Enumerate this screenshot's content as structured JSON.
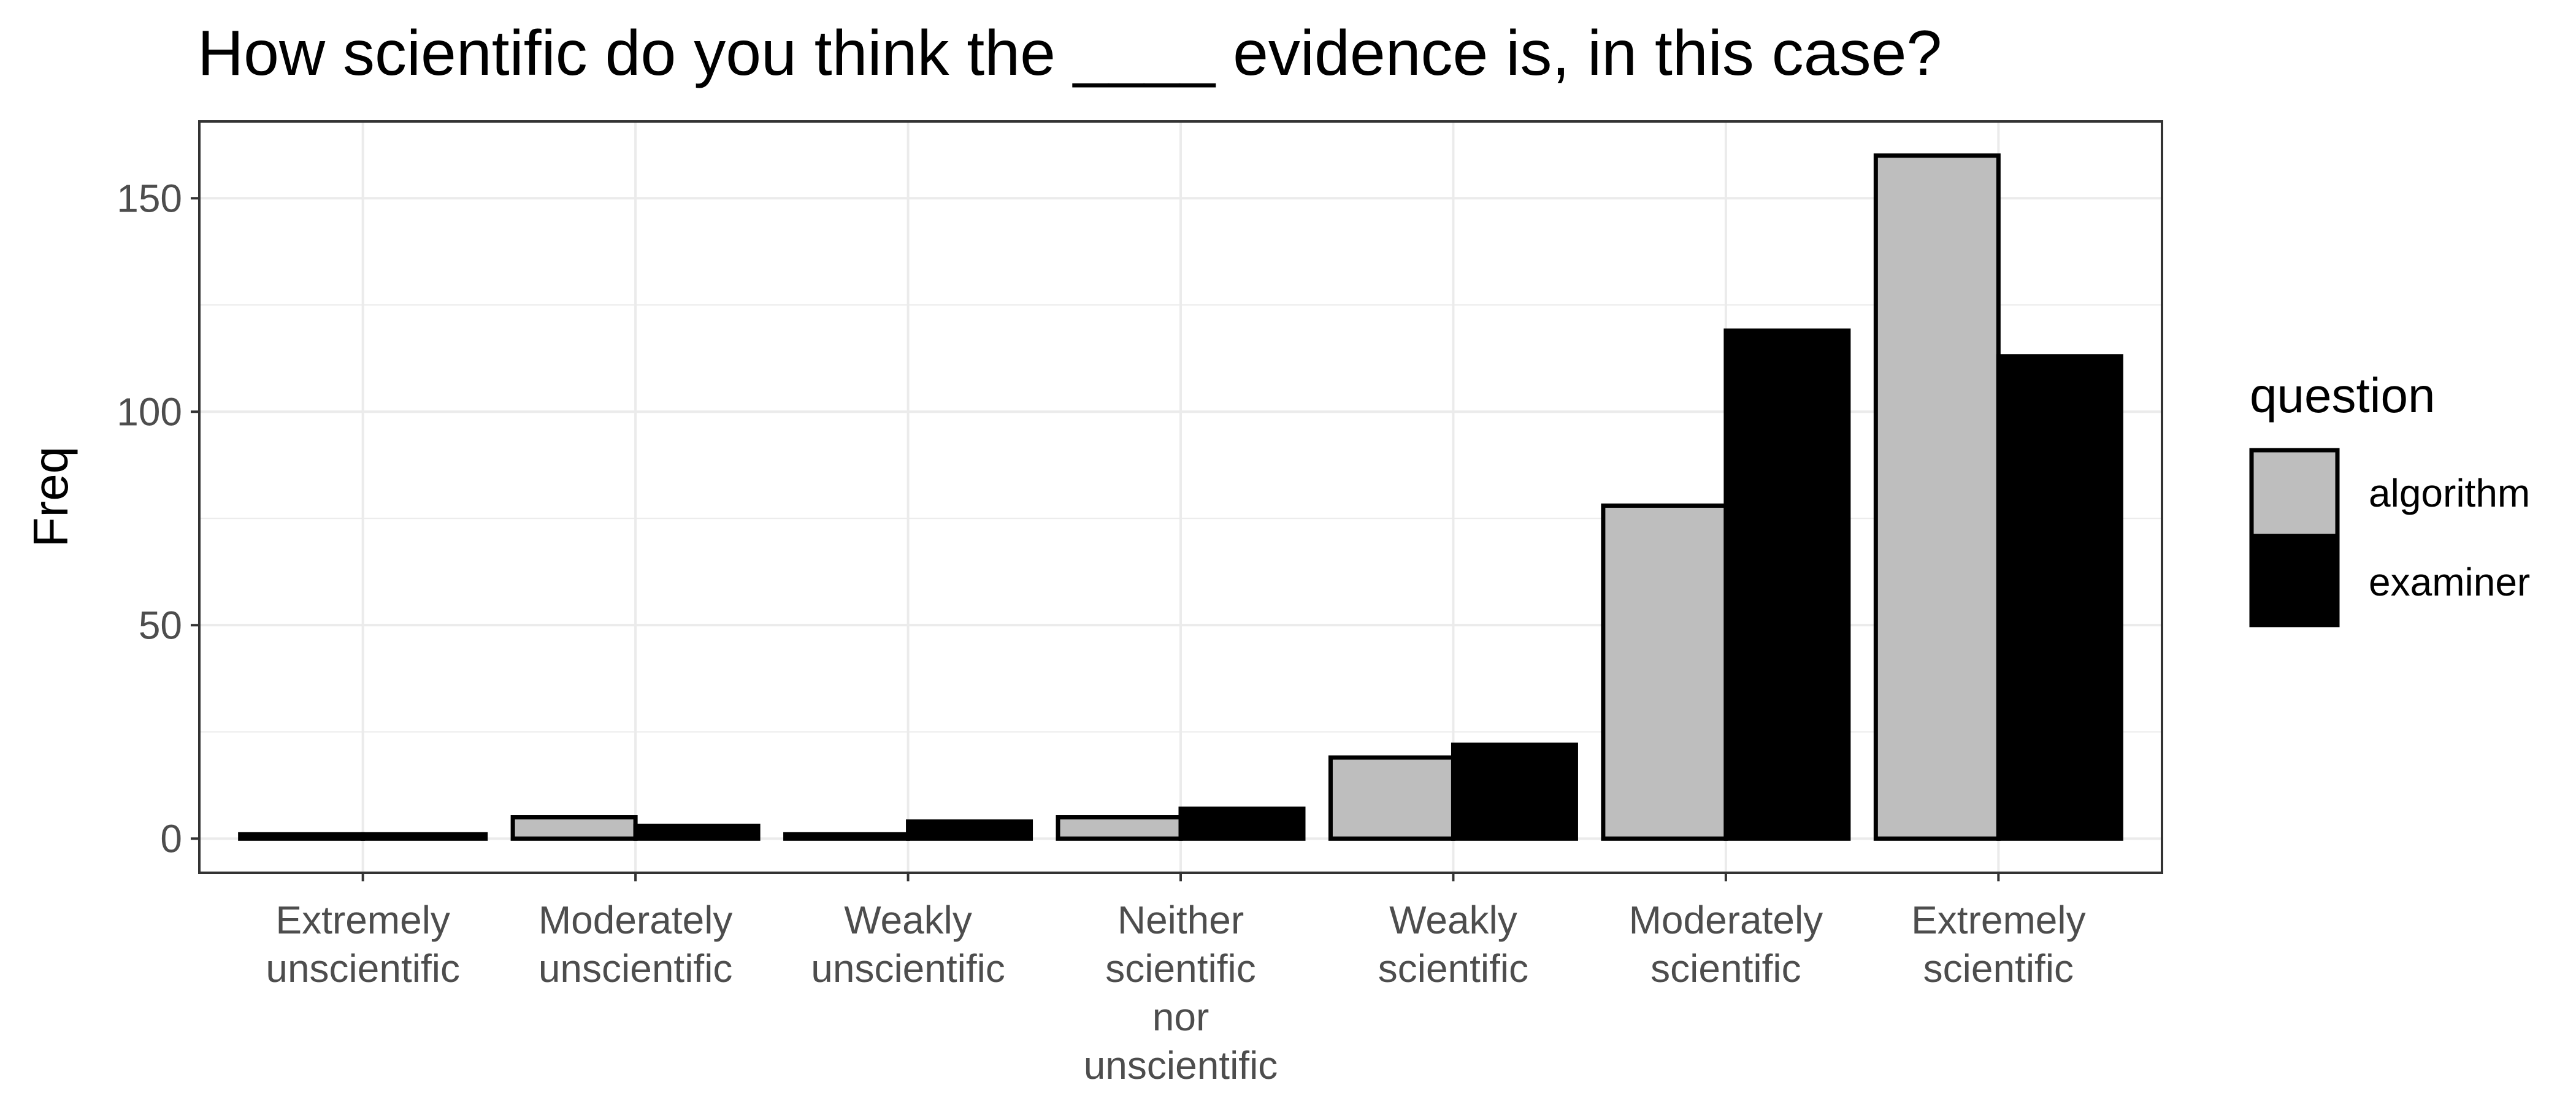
{
  "chart_data": {
    "type": "bar",
    "title": "How scientific do you think the ____ evidence is, in this case?",
    "xlabel": "",
    "ylabel": "Freq",
    "categories": [
      [
        "Extremely",
        "unscientific"
      ],
      [
        "Moderately",
        "unscientific"
      ],
      [
        "Weakly",
        "unscientific"
      ],
      [
        "Neither",
        "scientific",
        "nor",
        "unscientific"
      ],
      [
        "Weakly",
        "scientific"
      ],
      [
        "Moderately",
        "scientific"
      ],
      [
        "Extremely",
        "scientific"
      ]
    ],
    "series": [
      {
        "name": "algorithm",
        "color": "#bebebe",
        "values": [
          1,
          5,
          1,
          5,
          19,
          78,
          160
        ]
      },
      {
        "name": "examiner",
        "color": "#000000",
        "values": [
          1,
          3,
          4,
          7,
          22,
          119,
          113
        ]
      }
    ],
    "yticks": [
      0,
      50,
      100,
      150
    ],
    "ylim": [
      -8,
      168
    ],
    "grid": true,
    "legend": {
      "title": "question",
      "placement": "right"
    }
  }
}
